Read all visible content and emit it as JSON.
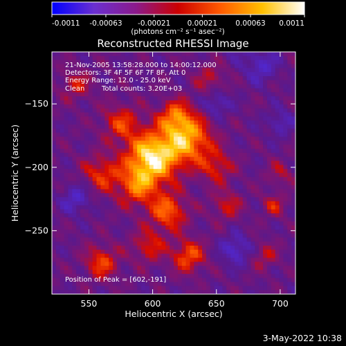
{
  "chart_data": {
    "type": "heatmap",
    "title": "Reconstructed RHESSI Image",
    "colorbar": {
      "ticks": [
        "-0.0011",
        "-0.00063",
        "-0.00021",
        "0.00021",
        "0.00063",
        "0.0011"
      ],
      "tick_values": [
        -0.0011,
        -0.00063,
        -0.00021,
        0.00021,
        0.00063,
        0.0011
      ],
      "range": [
        -0.0011,
        0.0011
      ],
      "units_label": "(photons cm⁻² s⁻¹ asec⁻²)",
      "colors": [
        "#0000ff",
        "#6a2fd0",
        "#8b1a8b",
        "#cc0000",
        "#ff5a00",
        "#ffc000",
        "#ffffff"
      ]
    },
    "xlabel": "Heliocentric X (arcsec)",
    "ylabel": "Heliocentric Y (arcsec)",
    "xlim": [
      521,
      712
    ],
    "ylim": [
      -300,
      -109
    ],
    "xticks": [
      550,
      600,
      650,
      700
    ],
    "xtick_labels": [
      "550",
      "600",
      "650",
      "700"
    ],
    "yticks": [
      -150,
      -200,
      -250
    ],
    "ytick_labels": [
      "−150",
      "−200",
      "−250"
    ],
    "annotations": [
      "21-Nov-2005 13:58:28.000 to 14:00:12.000",
      "Detectors: 3F 4F 5F 6F 7F 8F, Att 0",
      "Energy Range: 12.0 - 25.0 keV",
      "Clean",
      "Total counts: 3.20E+03",
      "Position of Peak = [602,-191]"
    ],
    "peak": {
      "x": 602,
      "y": -191
    },
    "blobs": [
      {
        "x": 600,
        "y": -192,
        "s": 14,
        "a": 1.0
      },
      {
        "x": 628,
        "y": -178,
        "s": 13,
        "a": 0.75
      },
      {
        "x": 618,
        "y": -160,
        "s": 9,
        "a": 0.55
      },
      {
        "x": 588,
        "y": -215,
        "s": 11,
        "a": 0.55
      },
      {
        "x": 612,
        "y": -235,
        "s": 10,
        "a": 0.6
      },
      {
        "x": 575,
        "y": -165,
        "s": 10,
        "a": 0.45
      },
      {
        "x": 560,
        "y": -205,
        "s": 10,
        "a": 0.45
      },
      {
        "x": 597,
        "y": -262,
        "s": 9,
        "a": 0.4
      },
      {
        "x": 628,
        "y": -270,
        "s": 9,
        "a": 0.55
      },
      {
        "x": 560,
        "y": -275,
        "s": 9,
        "a": 0.5
      },
      {
        "x": 650,
        "y": -200,
        "s": 9,
        "a": 0.4
      },
      {
        "x": 658,
        "y": -230,
        "s": 8,
        "a": 0.35
      },
      {
        "x": 540,
        "y": -135,
        "s": 8,
        "a": 0.35
      },
      {
        "x": 645,
        "y": -130,
        "s": 8,
        "a": 0.3
      },
      {
        "x": 688,
        "y": -270,
        "s": 7,
        "a": 0.3
      },
      {
        "x": 700,
        "y": -205,
        "s": 7,
        "a": 0.25
      },
      {
        "x": 695,
        "y": -230,
        "s": 6,
        "a": 0.35
      },
      {
        "x": 685,
        "y": -120,
        "s": 9,
        "a": -0.35
      },
      {
        "x": 540,
        "y": -225,
        "s": 8,
        "a": -0.35
      },
      {
        "x": 665,
        "y": -265,
        "s": 8,
        "a": -0.4
      },
      {
        "x": 650,
        "y": -150,
        "s": 7,
        "a": -0.35
      },
      {
        "x": 665,
        "y": -100,
        "s": 8,
        "a": -0.3
      },
      {
        "x": 700,
        "y": -165,
        "s": 7,
        "a": -0.3
      }
    ]
  },
  "footer": {
    "timestamp": "3-May-2022 10:38"
  }
}
